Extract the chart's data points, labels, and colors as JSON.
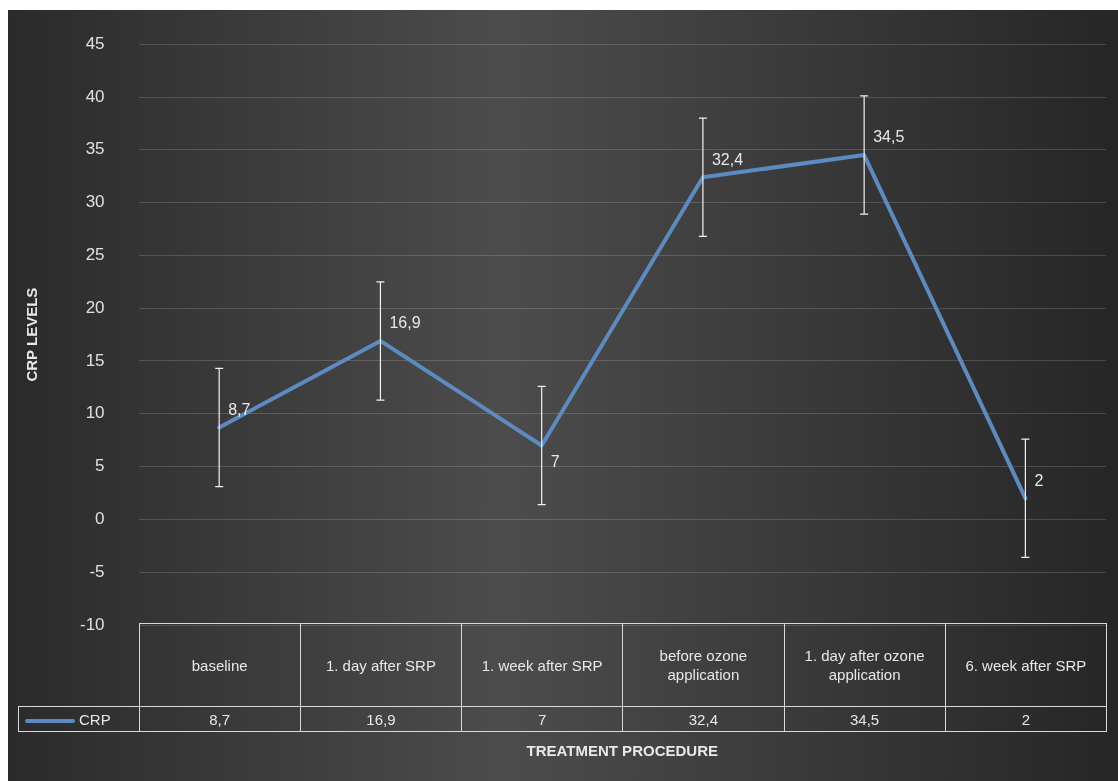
{
  "chart_data": {
    "type": "line",
    "ylabel": "CRP LEVELS",
    "xlabel": "TREATMENT PROCEDURE",
    "categories": [
      "baseline",
      "1. day after SRP",
      "1. week after SRP",
      "before ozone application",
      "1. day after ozone application",
      "6. week after SRP"
    ],
    "series": [
      {
        "name": "CRP",
        "color": "#5b8bc0",
        "values": [
          8.7,
          16.9,
          7,
          32.4,
          34.5,
          2
        ],
        "errors": [
          5.6,
          5.6,
          5.6,
          5.6,
          5.6,
          5.6
        ],
        "value_labels": [
          "8,7",
          "16,9",
          "7",
          "32,4",
          "34,5",
          "2"
        ]
      }
    ],
    "ylim": [
      -10,
      45
    ],
    "yticks": [
      -10,
      -5,
      0,
      5,
      10,
      15,
      20,
      25,
      30,
      35,
      40,
      45
    ],
    "grid": "y",
    "legend": "bottom",
    "marker": "none",
    "line_style": "solid"
  }
}
